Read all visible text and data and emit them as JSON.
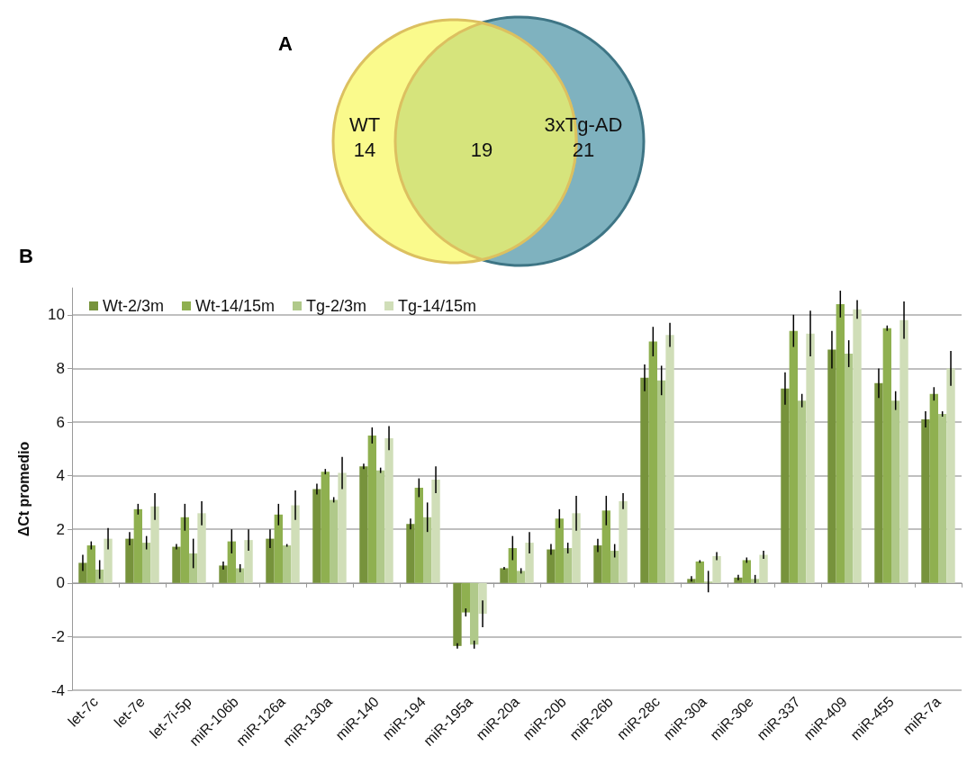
{
  "chart_data": [
    {
      "type": "other",
      "title": "A",
      "categories": [
        "WT",
        null,
        "3xTg-AD"
      ],
      "values": [
        14,
        19,
        21
      ],
      "colors": [
        "#fafa8c",
        "#d6e47c",
        "#7fb2bf"
      ],
      "data_labels": true
    },
    {
      "type": "bar",
      "title": "B",
      "ylabel": "ΔCt promedio",
      "categories": [
        "let-7c",
        "let-7e",
        "let-7i-5p",
        "miR-106b",
        "miR-126a",
        "miR-130a",
        "miR-140",
        "miR-194",
        "miR-195a",
        "miR-20a",
        "miR-20b",
        "miR-26b",
        "miR-28c",
        "miR-30a",
        "miR-30e",
        "miR-337",
        "miR-409",
        "miR-455",
        "miR-7a"
      ],
      "series": [
        {
          "name": "Wt-2/3m",
          "color": "#77933c",
          "values": [
            0.75,
            1.65,
            1.35,
            0.65,
            1.65,
            3.5,
            4.35,
            2.2,
            -2.35,
            0.55,
            1.25,
            1.4,
            7.65,
            0.15,
            0.2,
            7.25,
            8.7,
            7.45,
            6.1
          ],
          "errors": [
            0.3,
            0.25,
            0.1,
            0.15,
            0.35,
            0.2,
            0.1,
            0.2,
            0.1,
            0.05,
            0.2,
            0.25,
            0.5,
            0.1,
            0.1,
            0.6,
            0.7,
            0.55,
            0.3
          ]
        },
        {
          "name": "Wt-14/15m",
          "color": "#8fb050",
          "values": [
            1.4,
            2.75,
            2.45,
            1.55,
            2.55,
            4.15,
            5.5,
            3.55,
            -1.1,
            1.3,
            2.4,
            2.7,
            9.0,
            0.8,
            0.85,
            9.4,
            10.4,
            9.5,
            7.05
          ],
          "errors": [
            0.15,
            0.2,
            0.5,
            0.45,
            0.4,
            0.1,
            0.3,
            0.35,
            0.15,
            0.45,
            0.35,
            0.55,
            0.55,
            0.05,
            0.1,
            0.6,
            0.5,
            0.1,
            0.25
          ]
        },
        {
          "name": "Tg-2/3m",
          "color": "#b0c98a",
          "values": [
            0.5,
            1.5,
            1.1,
            0.55,
            1.4,
            3.1,
            4.2,
            2.45,
            -2.3,
            0.45,
            1.3,
            1.2,
            7.55,
            0.05,
            0.15,
            6.8,
            8.55,
            6.8,
            6.3
          ],
          "errors": [
            0.35,
            0.25,
            0.55,
            0.15,
            0.05,
            0.1,
            0.1,
            0.55,
            0.15,
            0.1,
            0.2,
            0.25,
            0.55,
            0.4,
            0.15,
            0.25,
            0.5,
            0.35,
            0.1
          ]
        },
        {
          "name": "Tg-14/15m",
          "color": "#d0deb8",
          "values": [
            1.65,
            2.85,
            2.6,
            1.6,
            2.9,
            4.1,
            5.4,
            3.85,
            -1.15,
            1.5,
            2.6,
            3.05,
            9.25,
            1.0,
            1.05,
            9.3,
            10.2,
            9.8,
            8.0
          ],
          "errors": [
            0.4,
            0.5,
            0.45,
            0.4,
            0.55,
            0.6,
            0.45,
            0.5,
            0.5,
            0.4,
            0.65,
            0.3,
            0.45,
            0.15,
            0.15,
            0.85,
            0.35,
            0.7,
            0.65
          ]
        }
      ],
      "ylim": [
        -4,
        11
      ],
      "yticks": [
        -4,
        -2,
        0,
        2,
        4,
        6,
        8,
        10
      ],
      "grid": "y",
      "legend": "top left"
    }
  ]
}
